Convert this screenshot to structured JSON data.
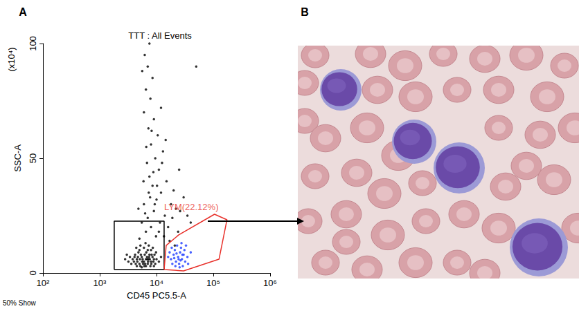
{
  "chart_data": {
    "type": "scatter",
    "panel": "A",
    "title": "TTT : All Events",
    "xlabel": "CD45 PC5.5-A",
    "ylabel": "SSC-A",
    "y_unit_label": "(x10⁴)",
    "footnote": "50% Show",
    "log": "x",
    "grid": false,
    "xlim": [
      100,
      1000000
    ],
    "xticks": [
      {
        "value": 100,
        "label": "10²"
      },
      {
        "value": 1000,
        "label": "10³"
      },
      {
        "value": 10000,
        "label": "10⁴"
      },
      {
        "value": 100000,
        "label": "10⁵"
      },
      {
        "value": 1000000,
        "label": "10⁶"
      }
    ],
    "ylim": [
      0,
      100
    ],
    "yticks": [
      0,
      50,
      100
    ],
    "series": [
      {
        "color": "#000000",
        "points": [
          [
            4000,
            5
          ],
          [
            4500,
            6
          ],
          [
            5000,
            4
          ],
          [
            5500,
            7
          ],
          [
            6000,
            5
          ],
          [
            6500,
            6
          ],
          [
            7000,
            4
          ],
          [
            7500,
            8
          ],
          [
            8000,
            5
          ],
          [
            9000,
            6
          ],
          [
            4200,
            8
          ],
          [
            4800,
            9
          ],
          [
            5200,
            3
          ],
          [
            5800,
            4
          ],
          [
            6200,
            8
          ],
          [
            6800,
            7
          ],
          [
            7200,
            6
          ],
          [
            7800,
            3
          ],
          [
            8500,
            7
          ],
          [
            9500,
            4
          ],
          [
            3800,
            6
          ],
          [
            4300,
            4
          ],
          [
            4700,
            7
          ],
          [
            5100,
            6
          ],
          [
            5600,
            5
          ],
          [
            6100,
            3
          ],
          [
            6600,
            9
          ],
          [
            7100,
            5
          ],
          [
            7600,
            6
          ],
          [
            8200,
            8
          ],
          [
            8800,
            5
          ],
          [
            3600,
            4
          ],
          [
            4100,
            7
          ],
          [
            4600,
            5
          ],
          [
            5300,
            8
          ],
          [
            5700,
            6
          ],
          [
            6300,
            4
          ],
          [
            6900,
            6
          ],
          [
            7400,
            7
          ],
          [
            8100,
            4
          ],
          [
            9200,
            8
          ],
          [
            10000,
            6
          ],
          [
            3400,
            7
          ],
          [
            5000,
            10
          ],
          [
            6000,
            11
          ],
          [
            7000,
            10
          ],
          [
            4500,
            3
          ],
          [
            5500,
            2.5
          ],
          [
            6500,
            3
          ],
          [
            8000,
            10
          ],
          [
            9000,
            3
          ],
          [
            11000,
            5
          ],
          [
            12000,
            7
          ],
          [
            3200,
            5
          ],
          [
            3000,
            8
          ],
          [
            2800,
            6
          ],
          [
            5200,
            12
          ],
          [
            6400,
            13
          ],
          [
            7300,
            12
          ],
          [
            4400,
            11
          ],
          [
            8600,
            11
          ],
          [
            9800,
            9
          ],
          [
            5000,
            15
          ],
          [
            6500,
            18
          ],
          [
            8000,
            20
          ],
          [
            7000,
            24
          ],
          [
            9000,
            27
          ],
          [
            6000,
            30
          ],
          [
            10000,
            32
          ],
          [
            12000,
            35
          ],
          [
            8500,
            38
          ],
          [
            7500,
            42
          ],
          [
            11000,
            45
          ],
          [
            6800,
            48
          ],
          [
            9500,
            50
          ],
          [
            13000,
            53
          ],
          [
            8000,
            56
          ],
          [
            10500,
            60
          ],
          [
            7200,
            63
          ],
          [
            9000,
            67
          ],
          [
            6000,
            70
          ],
          [
            12000,
            72
          ],
          [
            7800,
            76
          ],
          [
            6500,
            80
          ],
          [
            8500,
            85
          ],
          [
            7000,
            90
          ],
          [
            6200,
            95
          ],
          [
            7500,
            100
          ],
          [
            5600,
            88
          ],
          [
            15000,
            40
          ],
          [
            18000,
            30
          ],
          [
            20000,
            36
          ],
          [
            25000,
            45
          ],
          [
            14000,
            25
          ],
          [
            16000,
            20
          ],
          [
            22000,
            28
          ],
          [
            30000,
            33
          ],
          [
            35000,
            25
          ],
          [
            40000,
            22
          ],
          [
            50000,
            90
          ],
          [
            11500,
            22
          ],
          [
            9800,
            16
          ],
          [
            5500,
            22
          ],
          [
            6300,
            26
          ],
          [
            7700,
            33
          ],
          [
            8800,
            44
          ],
          [
            10200,
            38
          ],
          [
            12500,
            48
          ],
          [
            14500,
            58
          ],
          [
            6600,
            55
          ],
          [
            8200,
            62
          ],
          [
            5900,
            40
          ],
          [
            7300,
            35
          ],
          [
            9300,
            30
          ],
          [
            4800,
            28
          ],
          [
            11000,
            18
          ],
          [
            13500,
            16
          ],
          [
            17000,
            14
          ],
          [
            19000,
            24
          ],
          [
            24000,
            18
          ],
          [
            21000,
            12
          ],
          [
            26000,
            27
          ]
        ]
      },
      {
        "color": "#1e3cff",
        "points": [
          [
            18000,
            6
          ],
          [
            20000,
            8
          ],
          [
            22000,
            5
          ],
          [
            24000,
            7
          ],
          [
            26000,
            9
          ],
          [
            28000,
            6
          ],
          [
            30000,
            8
          ],
          [
            25000,
            4
          ],
          [
            21000,
            10
          ],
          [
            23000,
            12
          ],
          [
            27000,
            11
          ],
          [
            32000,
            5
          ],
          [
            19000,
            4
          ],
          [
            17000,
            9
          ],
          [
            29000,
            3
          ],
          [
            35000,
            7
          ],
          [
            24500,
            6
          ],
          [
            22500,
            8.5
          ],
          [
            26500,
            5.5
          ],
          [
            20500,
            6.5
          ],
          [
            31000,
            10
          ],
          [
            16000,
            7
          ],
          [
            33000,
            12
          ],
          [
            18500,
            11
          ],
          [
            27500,
            13
          ],
          [
            25500,
            2.5
          ],
          [
            36000,
            4
          ],
          [
            40000,
            9
          ],
          [
            28500,
            8
          ],
          [
            21500,
            3
          ]
        ]
      }
    ],
    "gates": [
      {
        "color": "#000000",
        "points": [
          [
            1800,
            1.5
          ],
          [
            13600,
            1.5
          ],
          [
            13600,
            22.6
          ],
          [
            1800,
            22.6
          ]
        ]
      },
      {
        "color": "#e8302a",
        "label": "LYM(22.12%)",
        "points": [
          [
            13600,
            1.5
          ],
          [
            14800,
            12
          ],
          [
            24600,
            16.6
          ],
          [
            105000,
            25.6
          ],
          [
            174000,
            23.2
          ],
          [
            126000,
            6
          ],
          [
            29900,
            0.9
          ]
        ]
      }
    ]
  },
  "image_panel": {
    "panel": "B"
  }
}
